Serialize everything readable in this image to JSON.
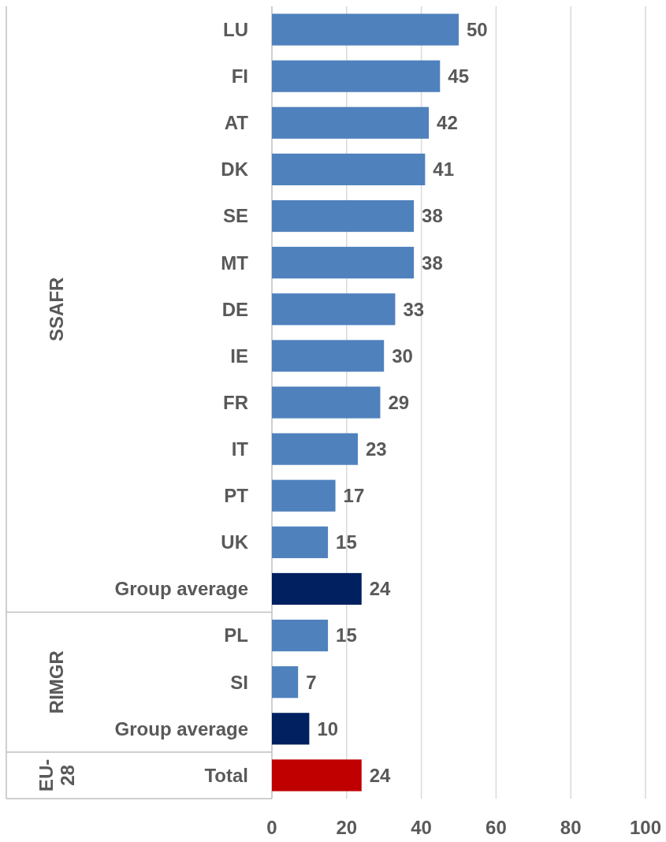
{
  "chart_data": {
    "type": "bar",
    "orientation": "horizontal",
    "categories": [
      "LU",
      "FI",
      "AT",
      "DK",
      "SE",
      "MT",
      "DE",
      "IE",
      "FR",
      "IT",
      "PT",
      "UK",
      "Group average",
      "PL",
      "SI",
      "Group average",
      "Total"
    ],
    "values": [
      50,
      45,
      42,
      41,
      38,
      38,
      33,
      30,
      29,
      23,
      17,
      15,
      24,
      15,
      7,
      10,
      24
    ],
    "colors": [
      "#4f81bd",
      "#4f81bd",
      "#4f81bd",
      "#4f81bd",
      "#4f81bd",
      "#4f81bd",
      "#4f81bd",
      "#4f81bd",
      "#4f81bd",
      "#4f81bd",
      "#4f81bd",
      "#4f81bd",
      "#002060",
      "#4f81bd",
      "#4f81bd",
      "#002060",
      "#c00000"
    ],
    "xlim": [
      0,
      100
    ],
    "xticks": [
      0,
      20,
      40,
      60,
      80,
      100
    ],
    "grid": "x",
    "data_labels": true,
    "annotations": [
      "SSAFR",
      "RIMGR",
      "EU-28"
    ]
  }
}
